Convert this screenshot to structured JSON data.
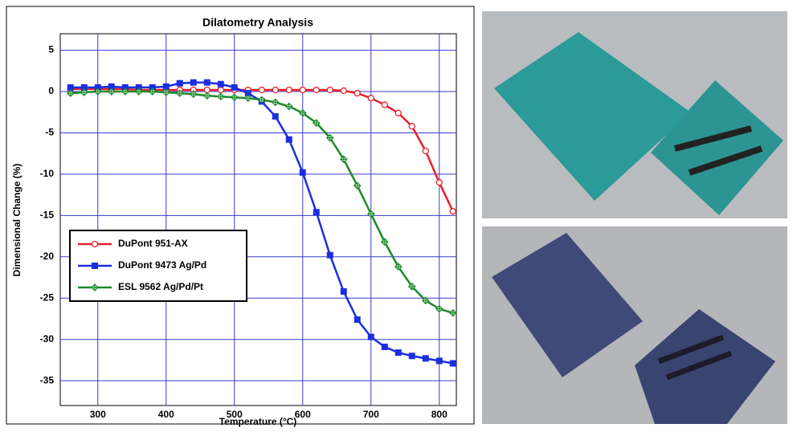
{
  "chart_data": {
    "type": "line",
    "title": "Dilatometry Analysis",
    "x_label": "Temperature (°C)",
    "y_label": "Dimensional Change (%)",
    "x": [
      260,
      280,
      300,
      320,
      340,
      360,
      380,
      400,
      420,
      440,
      460,
      480,
      500,
      520,
      540,
      560,
      580,
      600,
      620,
      640,
      660,
      680,
      700,
      720,
      740,
      760,
      780,
      800,
      820
    ],
    "series": [
      {
        "name": "DuPont 951-AX",
        "color": "#e8202a",
        "marker": "circle-open",
        "values": [
          0.3,
          0.3,
          0.3,
          0.3,
          0.3,
          0.2,
          0.2,
          0.2,
          0.2,
          0.2,
          0.2,
          0.2,
          0.2,
          0.2,
          0.2,
          0.2,
          0.2,
          0.2,
          0.2,
          0.2,
          0.1,
          -0.2,
          -0.8,
          -1.6,
          -2.6,
          -4.2,
          -7.2,
          -11.0,
          -14.5
        ]
      },
      {
        "name": "DuPont 9473 Ag/Pd",
        "color": "#1a2ee0",
        "marker": "square",
        "values": [
          0.5,
          0.5,
          0.5,
          0.6,
          0.5,
          0.5,
          0.5,
          0.6,
          1.0,
          1.1,
          1.1,
          0.9,
          0.5,
          -0.2,
          -1.2,
          -3.0,
          -5.8,
          -9.8,
          -14.6,
          -19.8,
          -24.2,
          -27.6,
          -29.7,
          -30.9,
          -31.6,
          -32.0,
          -32.3,
          -32.6,
          -32.9
        ]
      },
      {
        "name": "ESL 9562 Ag/Pd/Pt",
        "color": "#1a8a2a",
        "marker": "diamond-open",
        "values": [
          -0.2,
          -0.1,
          0,
          0,
          0,
          0,
          0,
          -0.1,
          -0.2,
          -0.3,
          -0.5,
          -0.6,
          -0.7,
          -0.8,
          -1.0,
          -1.3,
          -1.8,
          -2.6,
          -3.8,
          -5.6,
          -8.2,
          -11.4,
          -14.8,
          -18.2,
          -21.2,
          -23.6,
          -25.3,
          -26.3,
          -26.8
        ]
      }
    ],
    "xlim": [
      245,
      825
    ],
    "xticks": [
      300,
      400,
      500,
      600,
      700,
      800
    ],
    "ylim": [
      -38,
      7
    ],
    "yticks": [
      5,
      0,
      -5,
      -10,
      -15,
      -20,
      -25,
      -30,
      -35
    ],
    "grid": true,
    "legend": "lower-left"
  }
}
